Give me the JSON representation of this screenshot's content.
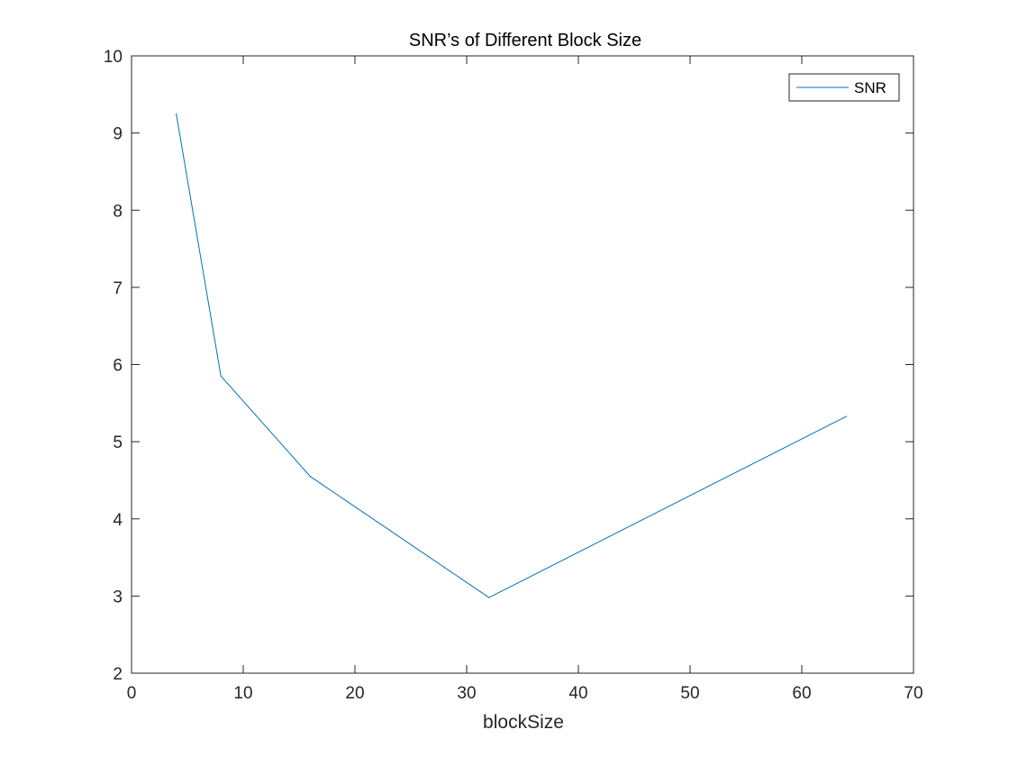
{
  "chart_data": {
    "type": "line",
    "title": "SNR’s of Different Block Size",
    "xlabel": "blockSize",
    "ylabel": "",
    "xlim": [
      0,
      70
    ],
    "ylim": [
      2,
      10
    ],
    "xticks": [
      0,
      10,
      20,
      30,
      40,
      50,
      60,
      70
    ],
    "yticks": [
      2,
      3,
      4,
      5,
      6,
      7,
      8,
      9,
      10
    ],
    "grid": false,
    "legend": {
      "position": "top-right",
      "entries": [
        "SNR"
      ]
    },
    "series": [
      {
        "name": "SNR",
        "color": "#0072BD",
        "x": [
          4,
          8,
          16,
          32,
          64
        ],
        "y": [
          9.25,
          5.85,
          4.55,
          2.98,
          5.33
        ]
      }
    ]
  }
}
